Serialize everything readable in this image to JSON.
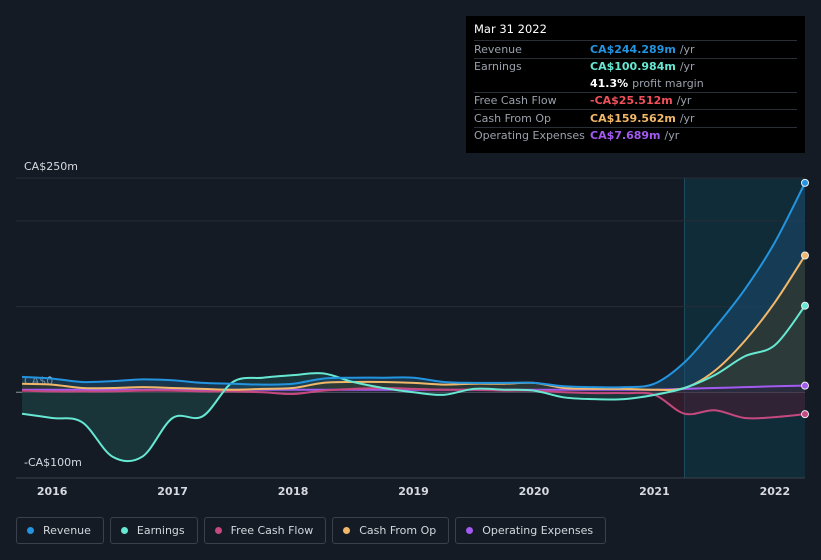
{
  "tooltip": {
    "date": "Mar 31 2022",
    "rows": [
      {
        "label": "Revenue",
        "value": "CA$244.289m",
        "suffix": "/yr",
        "color": "#2394df"
      },
      {
        "label": "Earnings",
        "value": "CA$100.984m",
        "suffix": "/yr",
        "color": "#66e8d3"
      },
      {
        "label": "",
        "value": "41.3%",
        "suffix": "profit margin",
        "color": "#ffffff"
      },
      {
        "label": "Free Cash Flow",
        "value": "-CA$25.512m",
        "suffix": "/yr",
        "color": "#f0505b"
      },
      {
        "label": "Cash From Op",
        "value": "CA$159.562m",
        "suffix": "/yr",
        "color": "#f2b86a"
      },
      {
        "label": "Operating Expenses",
        "value": "CA$7.689m",
        "suffix": "/yr",
        "color": "#a25af0"
      }
    ]
  },
  "legend": [
    {
      "label": "Revenue",
      "color": "#2394df"
    },
    {
      "label": "Earnings",
      "color": "#66e8d3"
    },
    {
      "label": "Free Cash Flow",
      "color": "#c5487f"
    },
    {
      "label": "Cash From Op",
      "color": "#f2b86a"
    },
    {
      "label": "Operating Expenses",
      "color": "#a25af0"
    }
  ],
  "chart_data": {
    "type": "line",
    "title": "",
    "xlabel": "",
    "ylabel": "",
    "ylim": [
      -100,
      250
    ],
    "xlim": [
      2015.7,
      2022.25
    ],
    "y_tick_labels": [
      {
        "value": 250,
        "label": "CA$250m"
      },
      {
        "value": 0,
        "label": "CA$0"
      },
      {
        "value": -100,
        "label": "-CA$100m"
      }
    ],
    "x_tick_labels": [
      "2016",
      "2017",
      "2018",
      "2019",
      "2020",
      "2021",
      "2022"
    ],
    "x_ticks": [
      2016,
      2017,
      2018,
      2019,
      2020,
      2021,
      2022
    ],
    "forecast_start": 2021.25,
    "series": [
      {
        "name": "Revenue",
        "color": "#2394df",
        "fill": "#1b4a6e",
        "x": [
          2015.75,
          2016.0,
          2016.25,
          2016.5,
          2016.75,
          2017.0,
          2017.25,
          2017.5,
          2017.75,
          2018.0,
          2018.25,
          2018.5,
          2018.75,
          2019.0,
          2019.25,
          2019.5,
          2019.75,
          2020.0,
          2020.25,
          2020.5,
          2020.75,
          2021.0,
          2021.25,
          2021.5,
          2021.75,
          2022.0,
          2022.25
        ],
        "values": [
          18,
          16,
          12,
          13,
          15,
          14,
          11,
          10,
          9,
          10,
          16,
          17,
          17,
          17,
          12,
          11,
          11,
          11,
          7,
          6,
          6,
          10,
          35,
          75,
          120,
          175,
          244.3
        ]
      },
      {
        "name": "Earnings",
        "color": "#66e8d3",
        "fill": "#1e4a4a",
        "x": [
          2015.75,
          2016.0,
          2016.25,
          2016.5,
          2016.75,
          2017.0,
          2017.25,
          2017.5,
          2017.75,
          2018.0,
          2018.25,
          2018.5,
          2018.75,
          2019.0,
          2019.25,
          2019.5,
          2019.75,
          2020.0,
          2020.25,
          2020.5,
          2020.75,
          2021.0,
          2021.25,
          2021.5,
          2021.75,
          2022.0,
          2022.25
        ],
        "values": [
          -25,
          -30,
          -35,
          -75,
          -75,
          -30,
          -28,
          12,
          17,
          20,
          22,
          12,
          5,
          0,
          -3,
          4,
          3,
          2,
          -6,
          -8,
          -8,
          -3,
          5,
          20,
          42,
          55,
          101
        ]
      },
      {
        "name": "Free Cash Flow",
        "color": "#c5487f",
        "fill": "#4a1e33",
        "x": [
          2015.75,
          2016.0,
          2016.25,
          2016.5,
          2016.75,
          2017.0,
          2017.25,
          2017.5,
          2017.75,
          2018.0,
          2018.25,
          2018.5,
          2018.75,
          2019.0,
          2019.25,
          2019.5,
          2019.75,
          2020.0,
          2020.25,
          2020.5,
          2020.75,
          2021.0,
          2021.25,
          2021.5,
          2021.75,
          2022.0,
          2022.25
        ],
        "values": [
          2,
          1,
          1,
          1,
          2,
          2,
          1,
          1,
          0,
          -2,
          2,
          4,
          5,
          4,
          3,
          3,
          2,
          2,
          0,
          -1,
          -1,
          -3,
          -25,
          -21,
          -30,
          -29,
          -25.5
        ]
      },
      {
        "name": "Cash From Op",
        "color": "#f2b86a",
        "fill": "#3d3420",
        "x": [
          2015.75,
          2016.0,
          2016.25,
          2016.5,
          2016.75,
          2017.0,
          2017.25,
          2017.5,
          2017.75,
          2018.0,
          2018.25,
          2018.5,
          2018.75,
          2019.0,
          2019.25,
          2019.5,
          2019.75,
          2020.0,
          2020.25,
          2020.5,
          2020.75,
          2021.0,
          2021.25,
          2021.5,
          2021.75,
          2022.0,
          2022.25
        ],
        "values": [
          10,
          9,
          5,
          5,
          6,
          5,
          4,
          3,
          4,
          5,
          11,
          12,
          12,
          11,
          9,
          10,
          10,
          11,
          5,
          4,
          4,
          3,
          5,
          25,
          60,
          105,
          159.6
        ]
      },
      {
        "name": "Operating Expenses",
        "color": "#a25af0",
        "fill": "#2c1f44",
        "x": [
          2015.75,
          2016.0,
          2016.25,
          2016.5,
          2016.75,
          2017.0,
          2017.25,
          2017.5,
          2017.75,
          2018.0,
          2018.25,
          2018.5,
          2018.75,
          2019.0,
          2019.25,
          2019.5,
          2019.75,
          2020.0,
          2020.25,
          2020.5,
          2020.75,
          2021.0,
          2021.25,
          2021.5,
          2021.75,
          2022.0,
          2022.25
        ],
        "values": [
          3,
          3,
          3,
          3,
          3,
          3,
          3,
          3,
          3,
          3,
          3,
          3,
          3,
          3,
          3,
          3,
          3,
          3,
          3,
          3,
          3,
          3,
          4,
          5,
          6,
          7,
          7.7
        ]
      }
    ]
  }
}
